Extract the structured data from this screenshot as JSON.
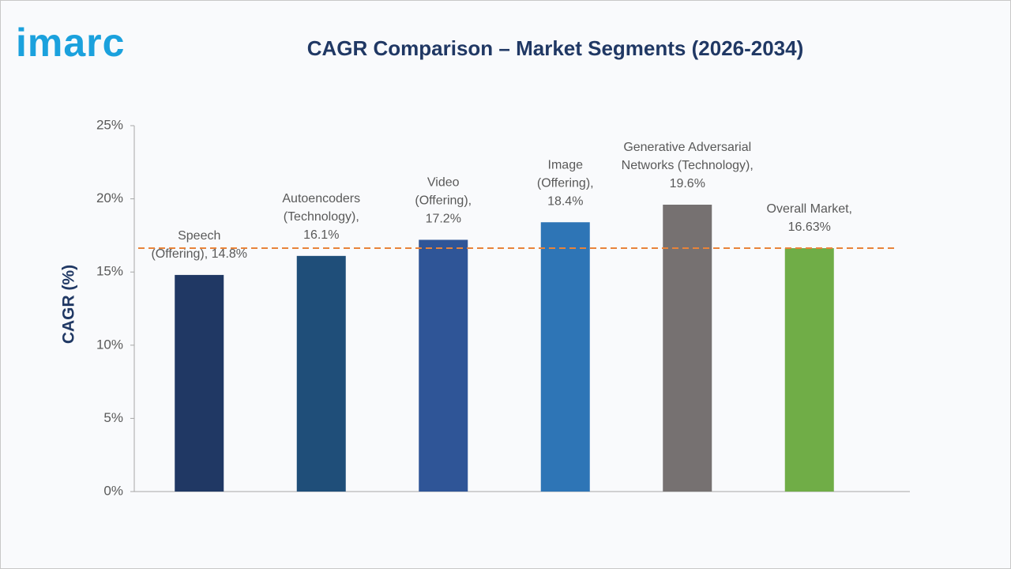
{
  "logo": "imarc",
  "chart_data": {
    "type": "bar",
    "title": "CAGR Comparison – Market Segments (2026-2034)",
    "y_label": "CAGR (%)",
    "values": [
      14.8,
      16.1,
      17.2,
      18.4,
      19.6,
      16.63
    ],
    "value_labels": [
      [
        "Speech",
        "(Offering), 14.8%"
      ],
      [
        "Autoencoders",
        "(Technology),",
        "16.1%"
      ],
      [
        "Video",
        "(Offering),",
        "17.2%"
      ],
      [
        "Image",
        "(Offering),",
        "18.4%"
      ],
      [
        "Generative Adversarial",
        "Networks (Technology),",
        "19.6%"
      ],
      [
        "Overall Market,",
        "16.63%"
      ]
    ],
    "colors": [
      "#203864",
      "#1f4e79",
      "#2f5597",
      "#2e75b6",
      "#767171",
      "#70ad47"
    ],
    "ylim": [
      0,
      25
    ],
    "yticks": [
      {
        "value": 0,
        "label": "0%"
      },
      {
        "value": 5,
        "label": "5%"
      },
      {
        "value": 10,
        "label": "10%"
      },
      {
        "value": 15,
        "label": "15%"
      },
      {
        "value": 20,
        "label": "20%"
      },
      {
        "value": 25,
        "label": "25%"
      }
    ],
    "reference_line": {
      "value": 16.63,
      "color": "#e8833a",
      "style": "dashed"
    },
    "grid": false
  }
}
